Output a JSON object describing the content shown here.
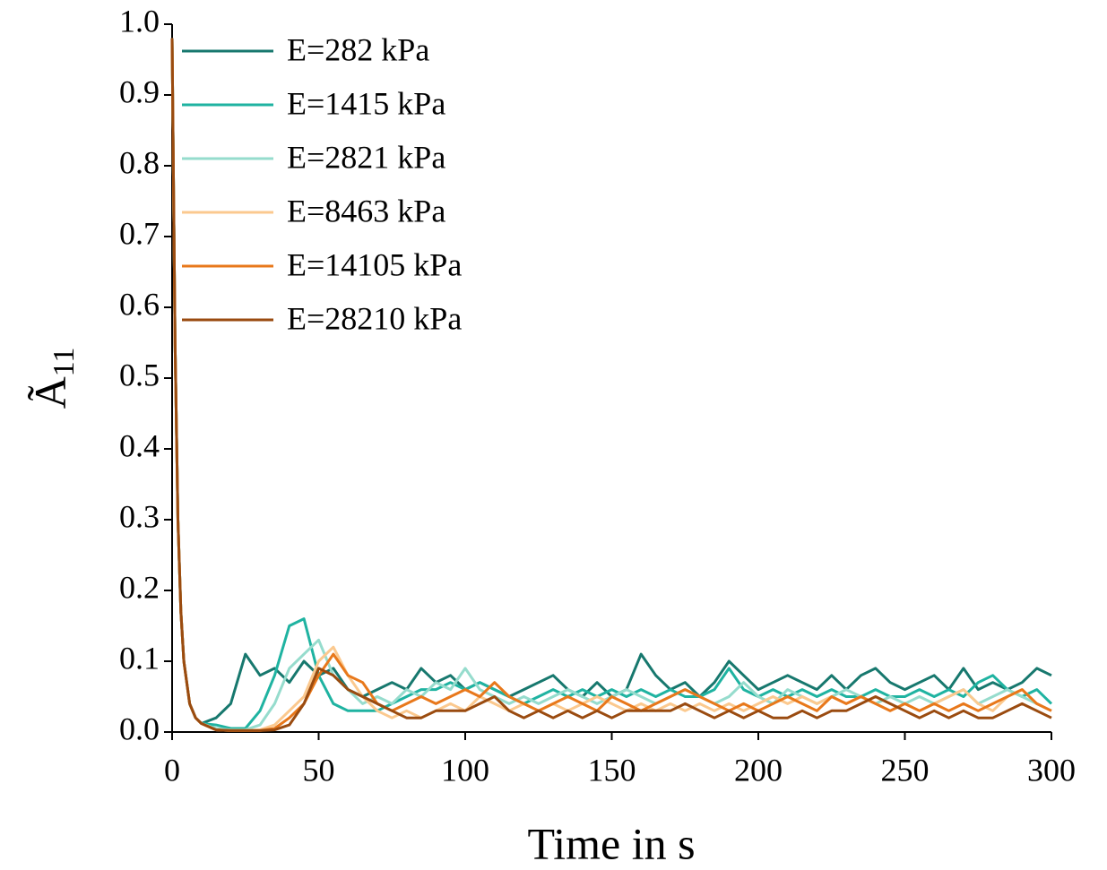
{
  "chart_data": {
    "type": "line",
    "ylabel": {
      "text": "Ã",
      "subscript": "11"
    },
    "xlabel": "Time in s",
    "x": [
      0,
      1,
      2,
      3,
      4,
      6,
      8,
      10,
      15,
      20,
      25,
      30,
      35,
      40,
      45,
      50,
      55,
      60,
      65,
      70,
      75,
      80,
      85,
      90,
      95,
      100,
      105,
      110,
      115,
      120,
      125,
      130,
      135,
      140,
      145,
      150,
      155,
      160,
      165,
      170,
      175,
      180,
      185,
      190,
      195,
      200,
      205,
      210,
      215,
      220,
      225,
      230,
      235,
      240,
      245,
      250,
      255,
      260,
      265,
      270,
      275,
      280,
      285,
      290,
      295,
      300
    ],
    "series": [
      {
        "name": "E=282 kPa",
        "color": "#17786e",
        "values": [
          0.98,
          0.55,
          0.3,
          0.17,
          0.1,
          0.04,
          0.02,
          0.012,
          0.02,
          0.04,
          0.11,
          0.08,
          0.09,
          0.07,
          0.1,
          0.08,
          0.09,
          0.06,
          0.05,
          0.06,
          0.07,
          0.06,
          0.09,
          0.07,
          0.08,
          0.06,
          0.07,
          0.06,
          0.05,
          0.06,
          0.07,
          0.08,
          0.06,
          0.05,
          0.07,
          0.05,
          0.06,
          0.11,
          0.08,
          0.06,
          0.07,
          0.05,
          0.07,
          0.1,
          0.08,
          0.06,
          0.07,
          0.08,
          0.07,
          0.06,
          0.08,
          0.06,
          0.08,
          0.09,
          0.07,
          0.06,
          0.07,
          0.08,
          0.06,
          0.09,
          0.06,
          0.07,
          0.06,
          0.07,
          0.09,
          0.08
        ]
      },
      {
        "name": "E=1415 kPa",
        "color": "#1fb3a1",
        "values": [
          0.98,
          0.55,
          0.3,
          0.17,
          0.1,
          0.04,
          0.02,
          0.012,
          0.01,
          0.005,
          0.005,
          0.03,
          0.08,
          0.15,
          0.16,
          0.08,
          0.04,
          0.03,
          0.03,
          0.03,
          0.04,
          0.05,
          0.06,
          0.06,
          0.07,
          0.06,
          0.07,
          0.06,
          0.05,
          0.04,
          0.05,
          0.06,
          0.05,
          0.06,
          0.05,
          0.06,
          0.05,
          0.06,
          0.05,
          0.06,
          0.05,
          0.05,
          0.06,
          0.09,
          0.06,
          0.05,
          0.06,
          0.05,
          0.06,
          0.05,
          0.06,
          0.05,
          0.05,
          0.06,
          0.05,
          0.05,
          0.06,
          0.05,
          0.06,
          0.05,
          0.07,
          0.08,
          0.06,
          0.05,
          0.06,
          0.04
        ]
      },
      {
        "name": "E=2821 kPa",
        "color": "#96dccd",
        "values": [
          0.98,
          0.55,
          0.3,
          0.17,
          0.1,
          0.04,
          0.02,
          0.012,
          0.005,
          0.003,
          0.003,
          0.01,
          0.04,
          0.09,
          0.11,
          0.13,
          0.08,
          0.06,
          0.04,
          0.05,
          0.04,
          0.06,
          0.05,
          0.07,
          0.06,
          0.09,
          0.06,
          0.05,
          0.04,
          0.05,
          0.04,
          0.05,
          0.06,
          0.05,
          0.04,
          0.05,
          0.06,
          0.05,
          0.04,
          0.05,
          0.06,
          0.05,
          0.04,
          0.05,
          0.07,
          0.05,
          0.04,
          0.06,
          0.05,
          0.04,
          0.05,
          0.06,
          0.05,
          0.04,
          0.05,
          0.04,
          0.05,
          0.04,
          0.05,
          0.06,
          0.04,
          0.05,
          0.06,
          0.05,
          0.04,
          0.03
        ]
      },
      {
        "name": "E=8463 kPa",
        "color": "#fbc98f",
        "values": [
          0.98,
          0.55,
          0.3,
          0.17,
          0.1,
          0.04,
          0.02,
          0.012,
          0.003,
          0.002,
          0.002,
          0.003,
          0.01,
          0.03,
          0.05,
          0.1,
          0.12,
          0.08,
          0.05,
          0.03,
          0.02,
          0.03,
          0.02,
          0.03,
          0.04,
          0.03,
          0.05,
          0.04,
          0.03,
          0.04,
          0.03,
          0.04,
          0.03,
          0.04,
          0.05,
          0.04,
          0.03,
          0.04,
          0.03,
          0.04,
          0.03,
          0.04,
          0.03,
          0.04,
          0.03,
          0.04,
          0.05,
          0.04,
          0.05,
          0.04,
          0.05,
          0.04,
          0.05,
          0.04,
          0.03,
          0.04,
          0.03,
          0.04,
          0.05,
          0.06,
          0.04,
          0.03,
          0.05,
          0.06,
          0.04,
          0.03
        ]
      },
      {
        "name": "E=14105 kPa",
        "color": "#e8781b",
        "values": [
          0.98,
          0.55,
          0.3,
          0.17,
          0.1,
          0.04,
          0.02,
          0.012,
          0.003,
          0.002,
          0.002,
          0.002,
          0.005,
          0.02,
          0.04,
          0.08,
          0.11,
          0.08,
          0.07,
          0.04,
          0.03,
          0.04,
          0.05,
          0.04,
          0.05,
          0.06,
          0.05,
          0.07,
          0.05,
          0.04,
          0.03,
          0.04,
          0.05,
          0.04,
          0.03,
          0.05,
          0.04,
          0.03,
          0.04,
          0.05,
          0.06,
          0.05,
          0.04,
          0.03,
          0.04,
          0.03,
          0.04,
          0.05,
          0.04,
          0.03,
          0.05,
          0.04,
          0.05,
          0.04,
          0.03,
          0.04,
          0.03,
          0.04,
          0.03,
          0.04,
          0.03,
          0.04,
          0.05,
          0.06,
          0.04,
          0.03
        ]
      },
      {
        "name": "E=28210 kPa",
        "color": "#9a4b10",
        "values": [
          0.98,
          0.55,
          0.3,
          0.17,
          0.1,
          0.04,
          0.02,
          0.012,
          0.003,
          0.002,
          0.002,
          0.002,
          0.003,
          0.01,
          0.04,
          0.09,
          0.08,
          0.06,
          0.05,
          0.04,
          0.03,
          0.02,
          0.02,
          0.03,
          0.03,
          0.03,
          0.04,
          0.05,
          0.03,
          0.02,
          0.03,
          0.02,
          0.03,
          0.02,
          0.03,
          0.02,
          0.03,
          0.03,
          0.03,
          0.03,
          0.04,
          0.03,
          0.02,
          0.03,
          0.02,
          0.03,
          0.02,
          0.02,
          0.03,
          0.02,
          0.03,
          0.03,
          0.04,
          0.05,
          0.04,
          0.03,
          0.02,
          0.03,
          0.02,
          0.03,
          0.02,
          0.02,
          0.03,
          0.04,
          0.03,
          0.02
        ]
      }
    ],
    "xlim": [
      0,
      300
    ],
    "xticks": [
      0,
      50,
      100,
      150,
      200,
      250,
      300
    ],
    "ylim": [
      0,
      1
    ],
    "yticks": [
      {
        "value": 0,
        "label": "0.0"
      },
      0.1,
      0.2,
      0.3,
      0.4,
      0.5,
      0.6,
      0.7,
      0.8,
      0.9,
      {
        "value": 1,
        "label": "1.0"
      }
    ],
    "grid": false,
    "legend": "upper-left"
  }
}
